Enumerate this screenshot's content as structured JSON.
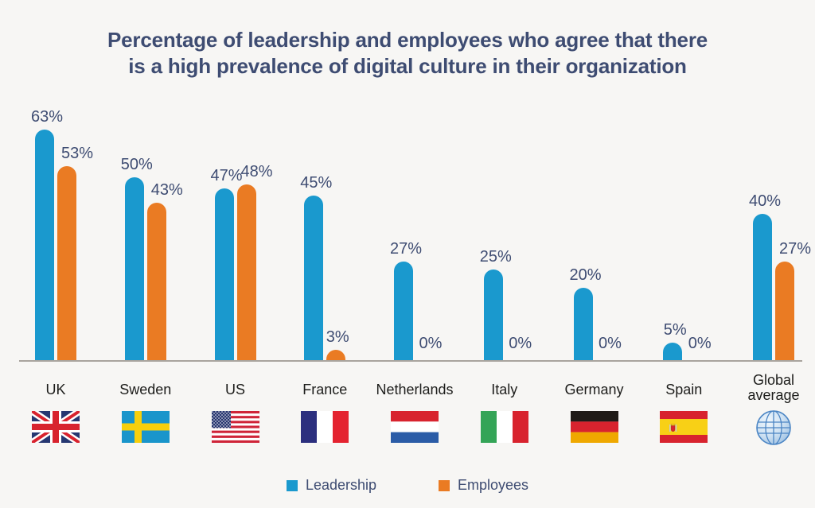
{
  "header": {
    "title_line1": "Percentage of leadership and employees who agree that there",
    "title_line2": "is a high prevalence of digital culture in their organization"
  },
  "chart_data": {
    "type": "bar",
    "title": "Percentage of leadership and employees who agree that there is a high prevalence of digital culture in their organization",
    "categories": [
      "UK",
      "Sweden",
      "US",
      "France",
      "Netherlands",
      "Italy",
      "Germany",
      "Spain",
      "Global average"
    ],
    "series": [
      {
        "name": "Leadership",
        "color": "#1a99ce",
        "values": [
          63,
          50,
          47,
          45,
          27,
          25,
          20,
          5,
          40
        ]
      },
      {
        "name": "Employees",
        "color": "#ea7b23",
        "values": [
          53,
          43,
          48,
          3,
          0,
          0,
          0,
          0,
          27
        ]
      }
    ],
    "value_suffix": "%",
    "value_labels": [
      [
        "63%",
        "50%",
        "47%",
        "45%",
        "27%",
        "25%",
        "20%",
        "5%",
        "40%"
      ],
      [
        "53%",
        "43%",
        "48%",
        "3%",
        "0%",
        "0%",
        "0%",
        "0%",
        "27%"
      ]
    ],
    "ylim": [
      0,
      70
    ],
    "grid": false,
    "legend_position": "bottom",
    "flag_icons": [
      "uk-flag-icon",
      "sweden-flag-icon",
      "us-flag-icon",
      "france-flag-icon",
      "netherlands-flag-icon",
      "italy-flag-icon",
      "germany-flag-icon",
      "spain-flag-icon",
      "globe-icon"
    ]
  },
  "legend": {
    "items": [
      {
        "label": "Leadership",
        "color": "#1a99ce"
      },
      {
        "label": "Employees",
        "color": "#ea7b23"
      }
    ]
  },
  "colors": {
    "leadership_bar": "#1a99ce",
    "employees_bar": "#ea7b23",
    "title_text": "#3e4c72",
    "value_text": "#3e4c72",
    "category_text": "#1d1d1b",
    "axis_line": "#a9a49e",
    "background": "#f7f6f4"
  }
}
